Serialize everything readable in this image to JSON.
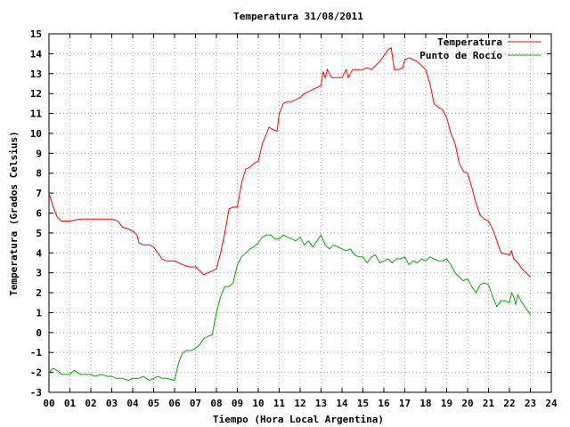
{
  "chart_data": {
    "type": "line",
    "title": "Temperatura 31/08/2011",
    "xlabel": "Tiempo (Hora Local Argentina)",
    "ylabel": "Temperatura (Grados Celsius)",
    "xlim": [
      0,
      24
    ],
    "ylim": [
      -3,
      15
    ],
    "xticks": [
      "00",
      "01",
      "02",
      "03",
      "04",
      "05",
      "06",
      "07",
      "08",
      "09",
      "10",
      "11",
      "12",
      "13",
      "14",
      "15",
      "16",
      "17",
      "18",
      "19",
      "20",
      "21",
      "22",
      "23",
      "24"
    ],
    "yticks": [
      -3,
      -2,
      -1,
      0,
      1,
      2,
      3,
      4,
      5,
      6,
      7,
      8,
      9,
      10,
      11,
      12,
      13,
      14,
      15
    ],
    "grid": true,
    "legend_position": "top-right",
    "series": [
      {
        "name": "Temperatura",
        "color": "#ff0000",
        "points": [
          [
            0,
            7.0
          ],
          [
            0.2,
            6.3
          ],
          [
            0.4,
            5.8
          ],
          [
            0.6,
            5.6
          ],
          [
            1.0,
            5.6
          ],
          [
            1.5,
            5.7
          ],
          [
            2.0,
            5.7
          ],
          [
            2.5,
            5.7
          ],
          [
            3.0,
            5.7
          ],
          [
            3.3,
            5.6
          ],
          [
            3.5,
            5.3
          ],
          [
            3.8,
            5.2
          ],
          [
            4.0,
            5.1
          ],
          [
            4.2,
            4.9
          ],
          [
            4.3,
            4.5
          ],
          [
            4.5,
            4.4
          ],
          [
            4.8,
            4.4
          ],
          [
            5.0,
            4.3
          ],
          [
            5.2,
            4.0
          ],
          [
            5.4,
            3.7
          ],
          [
            5.6,
            3.6
          ],
          [
            6.0,
            3.6
          ],
          [
            6.2,
            3.5
          ],
          [
            6.4,
            3.4
          ],
          [
            6.7,
            3.3
          ],
          [
            7.0,
            3.3
          ],
          [
            7.2,
            3.1
          ],
          [
            7.4,
            2.9
          ],
          [
            7.6,
            3.0
          ],
          [
            7.8,
            3.1
          ],
          [
            8.0,
            3.2
          ],
          [
            8.2,
            4.0
          ],
          [
            8.4,
            5.0
          ],
          [
            8.6,
            6.2
          ],
          [
            8.8,
            6.3
          ],
          [
            9.0,
            6.3
          ],
          [
            9.2,
            7.5
          ],
          [
            9.4,
            8.2
          ],
          [
            9.6,
            8.3
          ],
          [
            9.8,
            8.5
          ],
          [
            10.0,
            8.6
          ],
          [
            10.2,
            9.5
          ],
          [
            10.4,
            10.0
          ],
          [
            10.5,
            10.3
          ],
          [
            10.7,
            10.2
          ],
          [
            10.9,
            10.1
          ],
          [
            11.0,
            11.0
          ],
          [
            11.2,
            11.5
          ],
          [
            11.4,
            11.6
          ],
          [
            11.6,
            11.6
          ],
          [
            11.8,
            11.7
          ],
          [
            12.0,
            11.8
          ],
          [
            12.2,
            12.0
          ],
          [
            12.4,
            12.1
          ],
          [
            12.6,
            12.2
          ],
          [
            12.8,
            12.3
          ],
          [
            13.0,
            12.4
          ],
          [
            13.1,
            13.1
          ],
          [
            13.2,
            12.8
          ],
          [
            13.3,
            13.2
          ],
          [
            13.5,
            12.8
          ],
          [
            13.7,
            12.8
          ],
          [
            14.0,
            12.8
          ],
          [
            14.2,
            13.2
          ],
          [
            14.3,
            12.8
          ],
          [
            14.5,
            13.2
          ],
          [
            14.7,
            13.2
          ],
          [
            15.0,
            13.2
          ],
          [
            15.2,
            13.3
          ],
          [
            15.4,
            13.2
          ],
          [
            15.6,
            13.4
          ],
          [
            15.8,
            13.6
          ],
          [
            16.0,
            13.9
          ],
          [
            16.2,
            14.2
          ],
          [
            16.35,
            14.3
          ],
          [
            16.5,
            13.2
          ],
          [
            16.7,
            13.2
          ],
          [
            16.9,
            13.3
          ],
          [
            17.0,
            13.7
          ],
          [
            17.2,
            13.8
          ],
          [
            17.4,
            13.7
          ],
          [
            17.6,
            13.6
          ],
          [
            17.8,
            13.4
          ],
          [
            18.0,
            13.2
          ],
          [
            18.2,
            12.5
          ],
          [
            18.4,
            11.5
          ],
          [
            18.6,
            11.3
          ],
          [
            18.8,
            11.2
          ],
          [
            19.0,
            10.8
          ],
          [
            19.2,
            10.0
          ],
          [
            19.4,
            9.5
          ],
          [
            19.6,
            8.5
          ],
          [
            19.8,
            8.1
          ],
          [
            20.0,
            8.0
          ],
          [
            20.2,
            7.3
          ],
          [
            20.4,
            6.5
          ],
          [
            20.6,
            5.9
          ],
          [
            20.8,
            5.7
          ],
          [
            21.0,
            5.6
          ],
          [
            21.2,
            5.2
          ],
          [
            21.4,
            4.6
          ],
          [
            21.6,
            4.0
          ],
          [
            21.8,
            3.95
          ],
          [
            22.0,
            3.9
          ],
          [
            22.1,
            4.1
          ],
          [
            22.2,
            3.7
          ],
          [
            22.4,
            3.5
          ],
          [
            22.6,
            3.2
          ],
          [
            22.8,
            3.0
          ],
          [
            23.0,
            2.8
          ]
        ]
      },
      {
        "name": "Punto de Rocío",
        "color": "#00aa00",
        "points": [
          [
            0,
            -2.0
          ],
          [
            0.2,
            -1.8
          ],
          [
            0.4,
            -1.9
          ],
          [
            0.6,
            -2.1
          ],
          [
            1.0,
            -2.1
          ],
          [
            1.2,
            -1.9
          ],
          [
            1.5,
            -2.1
          ],
          [
            2.0,
            -2.1
          ],
          [
            2.2,
            -2.2
          ],
          [
            2.5,
            -2.1
          ],
          [
            2.8,
            -2.2
          ],
          [
            3.0,
            -2.2
          ],
          [
            3.2,
            -2.3
          ],
          [
            3.5,
            -2.3
          ],
          [
            3.8,
            -2.4
          ],
          [
            4.0,
            -2.3
          ],
          [
            4.3,
            -2.3
          ],
          [
            4.5,
            -2.2
          ],
          [
            4.8,
            -2.4
          ],
          [
            5.0,
            -2.3
          ],
          [
            5.2,
            -2.2
          ],
          [
            5.4,
            -2.3
          ],
          [
            5.6,
            -2.3
          ],
          [
            6.0,
            -2.4
          ],
          [
            6.2,
            -1.5
          ],
          [
            6.4,
            -1.0
          ],
          [
            6.6,
            -0.9
          ],
          [
            6.8,
            -0.9
          ],
          [
            7.0,
            -0.8
          ],
          [
            7.2,
            -0.6
          ],
          [
            7.4,
            -0.3
          ],
          [
            7.6,
            -0.2
          ],
          [
            7.8,
            -0.1
          ],
          [
            8.0,
            1.0
          ],
          [
            8.2,
            1.8
          ],
          [
            8.4,
            2.3
          ],
          [
            8.6,
            2.3
          ],
          [
            8.8,
            2.5
          ],
          [
            9.0,
            3.4
          ],
          [
            9.2,
            3.8
          ],
          [
            9.4,
            4.0
          ],
          [
            9.6,
            4.2
          ],
          [
            9.8,
            4.3
          ],
          [
            10.0,
            4.5
          ],
          [
            10.2,
            4.8
          ],
          [
            10.4,
            4.9
          ],
          [
            10.6,
            4.9
          ],
          [
            10.8,
            4.7
          ],
          [
            11.0,
            4.7
          ],
          [
            11.2,
            4.9
          ],
          [
            11.4,
            4.8
          ],
          [
            11.6,
            4.7
          ],
          [
            11.8,
            4.6
          ],
          [
            12.0,
            4.8
          ],
          [
            12.2,
            4.4
          ],
          [
            12.4,
            4.6
          ],
          [
            12.6,
            4.3
          ],
          [
            12.8,
            4.6
          ],
          [
            13.0,
            4.9
          ],
          [
            13.2,
            4.4
          ],
          [
            13.4,
            4.2
          ],
          [
            13.6,
            4.4
          ],
          [
            13.8,
            4.3
          ],
          [
            14.0,
            4.2
          ],
          [
            14.2,
            4.1
          ],
          [
            14.4,
            4.2
          ],
          [
            14.6,
            3.9
          ],
          [
            14.8,
            3.8
          ],
          [
            15.0,
            3.8
          ],
          [
            15.2,
            3.5
          ],
          [
            15.4,
            3.8
          ],
          [
            15.6,
            3.9
          ],
          [
            15.8,
            3.5
          ],
          [
            16.0,
            3.6
          ],
          [
            16.2,
            3.7
          ],
          [
            16.4,
            3.5
          ],
          [
            16.6,
            3.7
          ],
          [
            16.8,
            3.7
          ],
          [
            17.0,
            3.8
          ],
          [
            17.2,
            3.4
          ],
          [
            17.4,
            3.6
          ],
          [
            17.6,
            3.5
          ],
          [
            17.8,
            3.7
          ],
          [
            18.0,
            3.6
          ],
          [
            18.2,
            3.8
          ],
          [
            18.4,
            3.7
          ],
          [
            18.6,
            3.6
          ],
          [
            18.8,
            3.6
          ],
          [
            19.0,
            3.7
          ],
          [
            19.2,
            3.4
          ],
          [
            19.4,
            3.0
          ],
          [
            19.6,
            2.8
          ],
          [
            19.8,
            2.6
          ],
          [
            20.0,
            2.7
          ],
          [
            20.2,
            2.3
          ],
          [
            20.4,
            2.0
          ],
          [
            20.6,
            2.4
          ],
          [
            20.8,
            2.5
          ],
          [
            21.0,
            2.4
          ],
          [
            21.2,
            1.8
          ],
          [
            21.4,
            1.3
          ],
          [
            21.6,
            1.6
          ],
          [
            21.8,
            1.6
          ],
          [
            22.0,
            1.5
          ],
          [
            22.1,
            2.0
          ],
          [
            22.2,
            1.8
          ],
          [
            22.3,
            1.4
          ],
          [
            22.4,
            1.9
          ],
          [
            22.6,
            1.5
          ],
          [
            22.8,
            1.2
          ],
          [
            23.0,
            0.9
          ]
        ]
      }
    ]
  }
}
